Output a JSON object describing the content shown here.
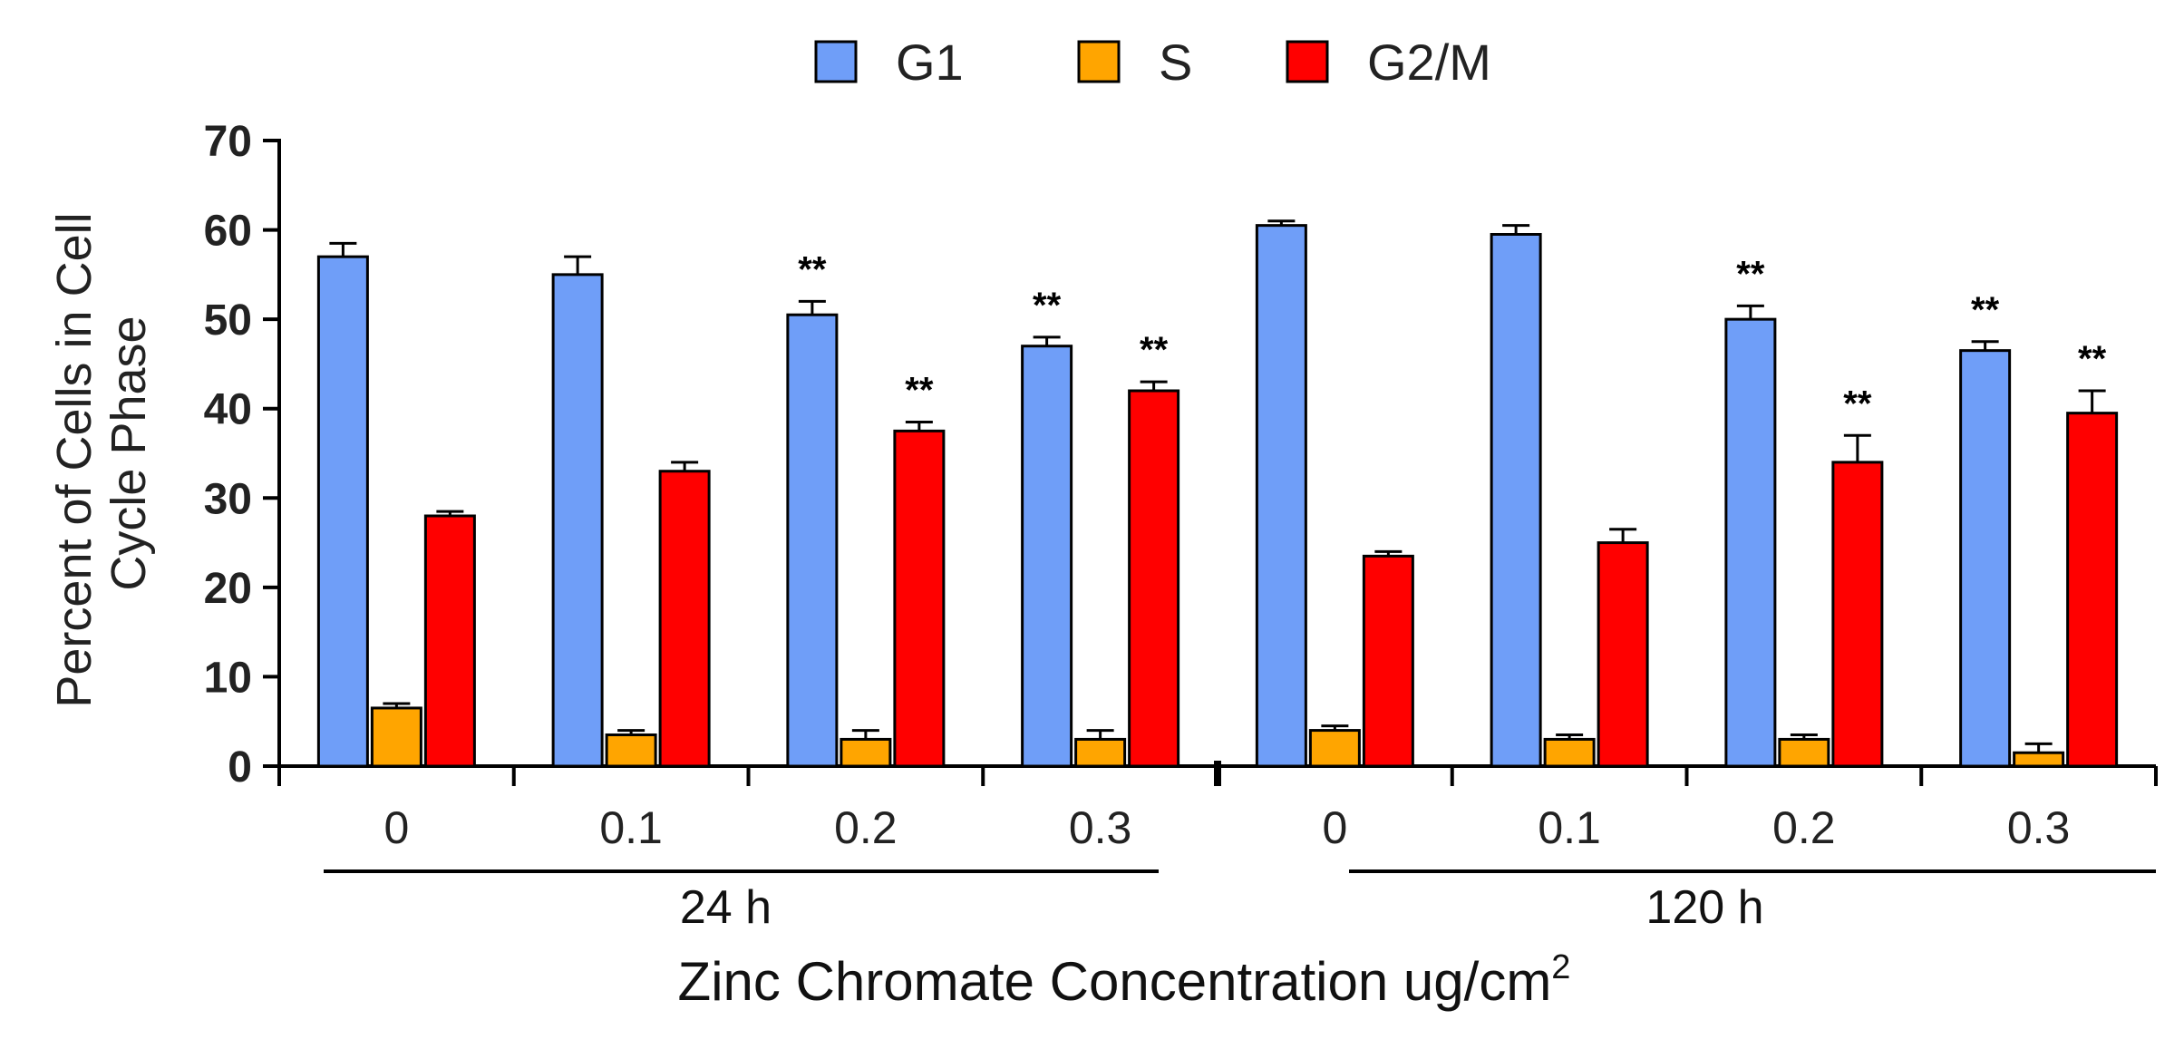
{
  "chart_data": {
    "type": "bar",
    "title": "",
    "ylabel_line1": "Percent of Cells in Cell",
    "ylabel_line2": "Cycle Phase",
    "xlabel_main": "Zinc Chromate Concentration ug/cm",
    "xlabel_sup": "2",
    "ylim": [
      0,
      70
    ],
    "yticks": [
      0,
      10,
      20,
      30,
      40,
      50,
      60,
      70
    ],
    "categories": [
      "0",
      "0.1",
      "0.2",
      "0.3",
      "0",
      "0.1",
      "0.2",
      "0.3"
    ],
    "groups": [
      {
        "label": "24 h",
        "categories": [
          0,
          1,
          2,
          3
        ]
      },
      {
        "label": "120 h",
        "categories": [
          4,
          5,
          6,
          7
        ]
      }
    ],
    "series": [
      {
        "name": "G1",
        "color": "#6f9ef8",
        "values": [
          57.0,
          55.0,
          50.5,
          47.0,
          60.5,
          59.5,
          50.0,
          46.5
        ],
        "errors": [
          1.5,
          2.0,
          1.5,
          1.0,
          0.5,
          1.0,
          1.5,
          1.0
        ],
        "significance": [
          "",
          "",
          "**",
          "**",
          "",
          "",
          "**",
          "**"
        ]
      },
      {
        "name": "S",
        "color": "#ffa500",
        "values": [
          6.5,
          3.5,
          3.0,
          3.0,
          4.0,
          3.0,
          3.0,
          1.5
        ],
        "errors": [
          0.5,
          0.5,
          1.0,
          1.0,
          0.5,
          0.5,
          0.5,
          1.0
        ],
        "significance": [
          "",
          "",
          "",
          "",
          "",
          "",
          "",
          ""
        ]
      },
      {
        "name": "G2/M",
        "color": "#ff0000",
        "values": [
          28.0,
          33.0,
          37.5,
          42.0,
          23.5,
          25.0,
          34.0,
          39.5
        ],
        "errors": [
          0.5,
          1.0,
          1.0,
          1.0,
          0.5,
          1.5,
          3.0,
          2.5
        ],
        "significance": [
          "",
          "",
          "**",
          "**",
          "",
          "",
          "**",
          "**"
        ]
      }
    ],
    "legend": "top-center",
    "grid": false
  }
}
